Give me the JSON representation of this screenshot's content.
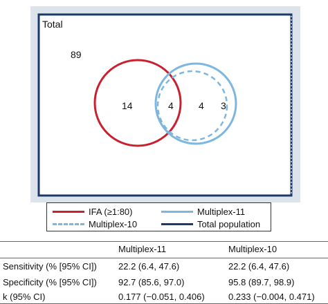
{
  "venn": {
    "outer_label": "Total",
    "outside_count": "89",
    "ifa_only_count": "14",
    "intersection_count": "4",
    "multiplex_only_count": "4",
    "multiplex11_only_count": "3"
  },
  "legend": {
    "items": [
      {
        "label": "IFA (≥1:80)",
        "color": "#c8202f",
        "style": "solid"
      },
      {
        "label": "Multiplex-11",
        "color": "#7db6df",
        "style": "solid"
      },
      {
        "label": "Multiplex-10",
        "color": "#7db6df",
        "style": "dashed"
      },
      {
        "label": "Total population",
        "color": "#1a3a6b",
        "style": "solid"
      }
    ]
  },
  "table": {
    "headers": [
      "",
      "Multiplex-11",
      "Multiplex-10"
    ],
    "rows": [
      {
        "label": "Sensitivity (% [95% CI])",
        "m11": "22.2 (6.4, 47.6)",
        "m10": "22.2 (6.4, 47.6)"
      },
      {
        "label": "Specificity (% [95% CI])",
        "m11": "92.7 (85.6, 97.0)",
        "m10": "95.8 (89.7, 98.9)"
      },
      {
        "label": "k (95% CI)",
        "m11": "0.177 (−0.051, 0.406)",
        "m10": "0.233 (−0.004, 0.471)"
      }
    ]
  },
  "colors": {
    "plot_background": "#dde3ea",
    "total_border": "#1a3a6b",
    "ifa": "#c8202f",
    "multiplex": "#7db6df"
  }
}
